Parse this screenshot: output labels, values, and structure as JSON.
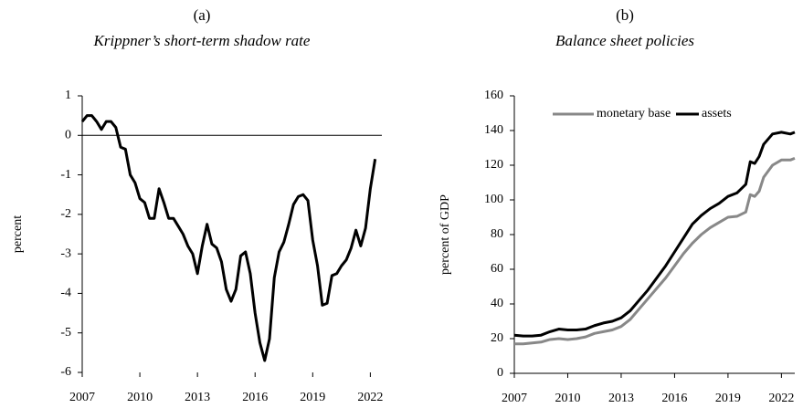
{
  "chart_data": [
    {
      "type": "line",
      "title": "(a)",
      "subtitle": "Krippner’s short-term shadow rate",
      "ylabel": "percent",
      "x": [
        2007,
        2007.25,
        2007.5,
        2007.75,
        2008,
        2008.25,
        2008.5,
        2008.75,
        2009,
        2009.25,
        2009.5,
        2009.75,
        2010,
        2010.25,
        2010.5,
        2010.75,
        2011,
        2011.25,
        2011.5,
        2011.75,
        2012,
        2012.25,
        2012.5,
        2012.75,
        2013,
        2013.25,
        2013.5,
        2013.75,
        2014,
        2014.25,
        2014.5,
        2014.75,
        2015,
        2015.25,
        2015.5,
        2015.75,
        2016,
        2016.25,
        2016.5,
        2016.75,
        2017,
        2017.25,
        2017.5,
        2017.75,
        2018,
        2018.25,
        2018.5,
        2018.75,
        2019,
        2019.25,
        2019.5,
        2019.75,
        2020,
        2020.25,
        2020.5,
        2020.75,
        2021,
        2021.25,
        2021.5,
        2021.75,
        2022,
        2022.25
      ],
      "series": [
        {
          "name": "shadow rate",
          "color": "#000000",
          "values": [
            0.35,
            0.5,
            0.5,
            0.35,
            0.15,
            0.35,
            0.35,
            0.2,
            -0.3,
            -0.35,
            -1.0,
            -1.2,
            -1.6,
            -1.7,
            -2.1,
            -2.1,
            -1.35,
            -1.7,
            -2.1,
            -2.1,
            -2.3,
            -2.5,
            -2.8,
            -3.0,
            -3.5,
            -2.8,
            -2.25,
            -2.75,
            -2.85,
            -3.2,
            -3.9,
            -4.2,
            -3.9,
            -3.05,
            -2.95,
            -3.5,
            -4.5,
            -5.25,
            -5.7,
            -5.15,
            -3.6,
            -2.95,
            -2.7,
            -2.25,
            -1.75,
            -1.55,
            -1.5,
            -1.65,
            -2.65,
            -3.3,
            -4.3,
            -4.25,
            -3.55,
            -3.5,
            -3.3,
            -3.15,
            -2.85,
            -2.4,
            -2.8,
            -2.35,
            -1.35,
            -0.6
          ]
        }
      ],
      "xlim": [
        2007,
        2022.6
      ],
      "xticks": [
        2007,
        2010,
        2013,
        2016,
        2019,
        2022
      ],
      "ylim": [
        -6,
        1
      ],
      "yticks": [
        1,
        0,
        -1,
        -2,
        -3,
        -4,
        -5,
        -6
      ],
      "legend": false
    },
    {
      "type": "line",
      "title": "(b)",
      "subtitle": "Balance sheet policies",
      "ylabel": "percent of GDP",
      "x": [
        2007,
        2007.5,
        2008,
        2008.5,
        2009,
        2009.5,
        2010,
        2010.5,
        2011,
        2011.5,
        2012,
        2012.5,
        2013,
        2013.5,
        2014,
        2014.5,
        2015,
        2015.5,
        2016,
        2016.5,
        2017,
        2017.5,
        2018,
        2018.5,
        2019,
        2019.5,
        2020,
        2020.25,
        2020.5,
        2020.75,
        2021,
        2021.5,
        2022,
        2022.5,
        2022.75
      ],
      "series": [
        {
          "name": "monetary base",
          "color": "#888888",
          "values": [
            17,
            17,
            17.5,
            18,
            19.5,
            20,
            19.5,
            20,
            21,
            23,
            24,
            25,
            27,
            31,
            37,
            43,
            49,
            55,
            62,
            69,
            75,
            80,
            84,
            87,
            90,
            90.5,
            93,
            103,
            102,
            105,
            113,
            120,
            123,
            123,
            124
          ]
        },
        {
          "name": "assets",
          "color": "#000000",
          "values": [
            22,
            21.5,
            21.5,
            22,
            24,
            25.5,
            25,
            25,
            25.5,
            27.5,
            29,
            30,
            32,
            36,
            42,
            48,
            55,
            62,
            70,
            78,
            86,
            91,
            95,
            98,
            102,
            104,
            109,
            122,
            121,
            125,
            132,
            138,
            139,
            138,
            139
          ]
        }
      ],
      "xlim": [
        2007,
        2022.75
      ],
      "xticks": [
        2007,
        2010,
        2013,
        2016,
        2019,
        2022
      ],
      "ylim": [
        0,
        160
      ],
      "yticks": [
        0,
        20,
        40,
        60,
        80,
        100,
        120,
        140,
        160
      ],
      "legend": "upper right"
    }
  ]
}
